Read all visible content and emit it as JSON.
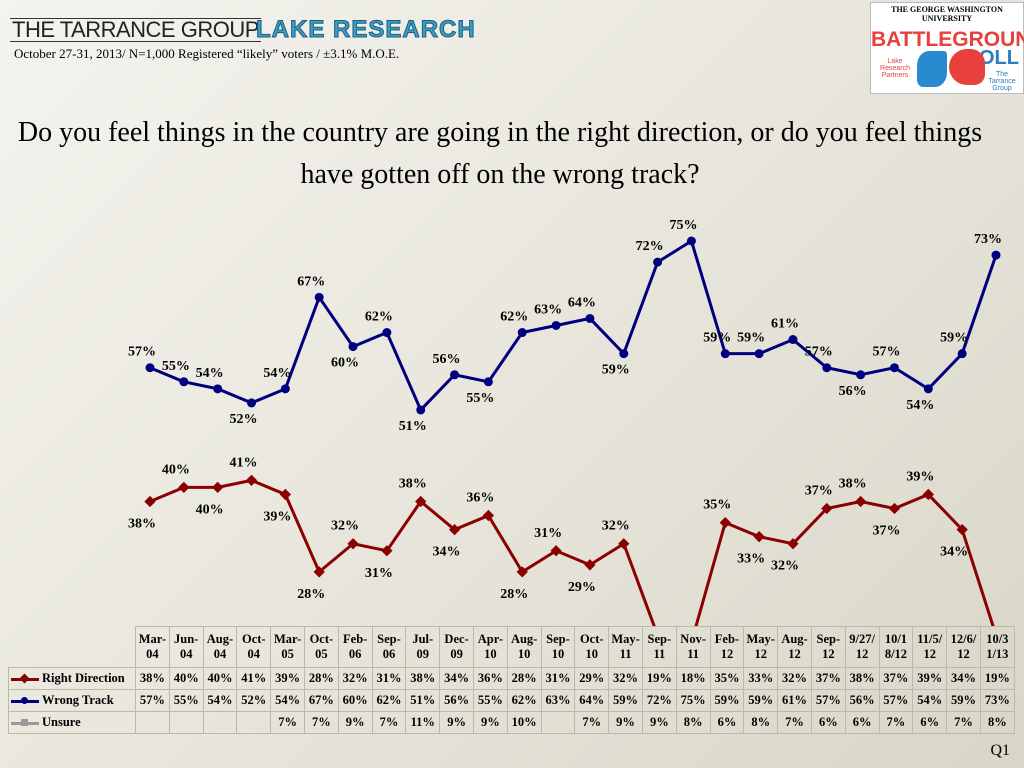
{
  "header": {
    "brand_left": "THE TARRANCE GROUP",
    "brand_right": "LAKE RESEARCH",
    "subtitle": "October 27-31, 2013/ N=1,000 Registered “likely” voters / ±3.1% M.O.E.",
    "logo": {
      "university": "THE GEORGE WASHINGTON UNIVERSITY",
      "title": "BATTLEGROUND",
      "title2": "POLL",
      "left_partner": "Lake Research Partners",
      "right_partner": "The Tarrance Group"
    }
  },
  "question": "Do you feel things in the country are going in the right direction, or do you feel things have gotten off on the wrong track?",
  "footer": {
    "slide_id": "Q1"
  },
  "chart_data": {
    "type": "line",
    "categories": [
      "Mar-04",
      "Jun-04",
      "Aug-04",
      "Oct-04",
      "Mar-05",
      "Oct-05",
      "Feb-06",
      "Sep-06",
      "Jul-09",
      "Dec-09",
      "Apr-10",
      "Aug-10",
      "Sep-10",
      "Oct-10",
      "May-11",
      "Sep-11",
      "Nov-11",
      "Feb-12",
      "May-12",
      "Aug-12",
      "Sep-12",
      "9/27/12",
      "10/18/12",
      "11/5/12",
      "12/6/12",
      "10/31/13"
    ],
    "category_lines": [
      [
        "Mar-",
        "04"
      ],
      [
        "Jun-",
        "04"
      ],
      [
        "Aug-",
        "04"
      ],
      [
        "Oct-",
        "04"
      ],
      [
        "Mar-",
        "05"
      ],
      [
        "Oct-",
        "05"
      ],
      [
        "Feb-",
        "06"
      ],
      [
        "Sep-",
        "06"
      ],
      [
        "Jul-",
        "09"
      ],
      [
        "Dec-",
        "09"
      ],
      [
        "Apr-",
        "10"
      ],
      [
        "Aug-",
        "10"
      ],
      [
        "Sep-",
        "10"
      ],
      [
        "Oct-",
        "10"
      ],
      [
        "May-",
        "11"
      ],
      [
        "Sep-",
        "11"
      ],
      [
        "Nov-",
        "11"
      ],
      [
        "Feb-",
        "12"
      ],
      [
        "May-",
        "12"
      ],
      [
        "Aug-",
        "12"
      ],
      [
        "Sep-",
        "12"
      ],
      [
        "9/27/",
        "12"
      ],
      [
        "10/1",
        "8/12"
      ],
      [
        "11/5/",
        "12"
      ],
      [
        "12/6/",
        "12"
      ],
      [
        "10/3",
        "1/13"
      ]
    ],
    "series": [
      {
        "name": "Right Direction",
        "color": "#8b0000",
        "marker": "diamond",
        "plotted": true,
        "values": [
          38,
          40,
          40,
          41,
          39,
          28,
          32,
          31,
          38,
          34,
          36,
          28,
          31,
          29,
          32,
          19,
          18,
          35,
          33,
          32,
          37,
          38,
          37,
          39,
          34,
          19
        ]
      },
      {
        "name": "Wrong Track",
        "color": "#00007f",
        "marker": "circle",
        "plotted": true,
        "values": [
          57,
          55,
          54,
          52,
          54,
          67,
          60,
          62,
          51,
          56,
          55,
          62,
          63,
          64,
          59,
          72,
          75,
          59,
          59,
          61,
          57,
          56,
          57,
          54,
          59,
          73
        ]
      },
      {
        "name": "Unsure",
        "color": "#999999",
        "marker": "square",
        "plotted": false,
        "values": [
          null,
          null,
          null,
          null,
          7,
          7,
          9,
          7,
          11,
          9,
          9,
          10,
          null,
          7,
          9,
          9,
          8,
          6,
          8,
          7,
          6,
          6,
          7,
          6,
          7,
          8
        ]
      }
    ],
    "value_suffix": "%",
    "grid": false,
    "legend": "data-table"
  }
}
